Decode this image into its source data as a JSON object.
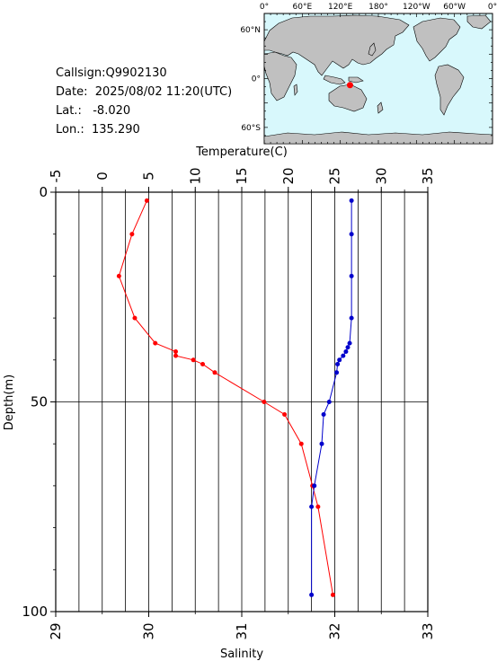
{
  "info": {
    "callsign_label": "Callsign:",
    "callsign": "Q9902130",
    "date_label": "Date:",
    "date": "2025/08/02 11:20(UTC)",
    "lat_label": "Lat.:",
    "lat": "-8.020",
    "lon_label": "Lon.:",
    "lon": "135.290"
  },
  "map": {
    "lon_labels": [
      "0°",
      "60°E",
      "120°E",
      "180°",
      "120°W",
      "60°W",
      "0°"
    ],
    "lat_labels": [
      "60°N",
      "0°",
      "60°S"
    ],
    "ocean_color": "#d8f8fc",
    "land_color": "#c0c0c0",
    "marker_color": "#ff0000",
    "marker": {
      "lon": 135.29,
      "lat": -8.02
    }
  },
  "chart_data": {
    "type": "line",
    "ylabel": "Depth(m)",
    "ylim": [
      100,
      0
    ],
    "yticks": [
      "0",
      "50",
      "100"
    ],
    "grid": true,
    "temperature_axis": {
      "label": "Temperature(C)",
      "position": "top",
      "range": [
        -5,
        35
      ],
      "ticks": [
        "-5",
        "0",
        "5",
        "10",
        "15",
        "20",
        "25",
        "30",
        "35"
      ]
    },
    "salinity_axis": {
      "label": "Salinity",
      "position": "bottom",
      "range": [
        29,
        33
      ],
      "ticks": [
        "29",
        "30",
        "31",
        "32",
        "33"
      ]
    },
    "series": [
      {
        "axis": "temperature",
        "color": "#ff0000",
        "points": [
          {
            "x": 4.8,
            "y": 2
          },
          {
            "x": 3.2,
            "y": 10
          },
          {
            "x": 1.8,
            "y": 20
          },
          {
            "x": 3.5,
            "y": 30
          },
          {
            "x": 5.7,
            "y": 36
          },
          {
            "x": 7.9,
            "y": 38
          },
          {
            "x": 7.9,
            "y": 39
          },
          {
            "x": 9.8,
            "y": 40
          },
          {
            "x": 10.8,
            "y": 41
          },
          {
            "x": 12.1,
            "y": 43
          },
          {
            "x": 17.4,
            "y": 50
          },
          {
            "x": 19.6,
            "y": 53
          },
          {
            "x": 21.4,
            "y": 60
          },
          {
            "x": 22.6,
            "y": 70
          },
          {
            "x": 23.2,
            "y": 75
          },
          {
            "x": 24.8,
            "y": 96
          }
        ]
      },
      {
        "axis": "salinity",
        "color": "#0000cc",
        "points": [
          {
            "x": 32.18,
            "y": 2
          },
          {
            "x": 32.18,
            "y": 10
          },
          {
            "x": 32.18,
            "y": 20
          },
          {
            "x": 32.18,
            "y": 30
          },
          {
            "x": 32.16,
            "y": 36
          },
          {
            "x": 32.14,
            "y": 37
          },
          {
            "x": 32.12,
            "y": 38
          },
          {
            "x": 32.09,
            "y": 39
          },
          {
            "x": 32.05,
            "y": 40
          },
          {
            "x": 32.03,
            "y": 41
          },
          {
            "x": 32.02,
            "y": 43
          },
          {
            "x": 31.94,
            "y": 50
          },
          {
            "x": 31.88,
            "y": 53
          },
          {
            "x": 31.86,
            "y": 60
          },
          {
            "x": 31.78,
            "y": 70
          },
          {
            "x": 31.75,
            "y": 75
          },
          {
            "x": 31.75,
            "y": 96
          }
        ]
      }
    ]
  }
}
